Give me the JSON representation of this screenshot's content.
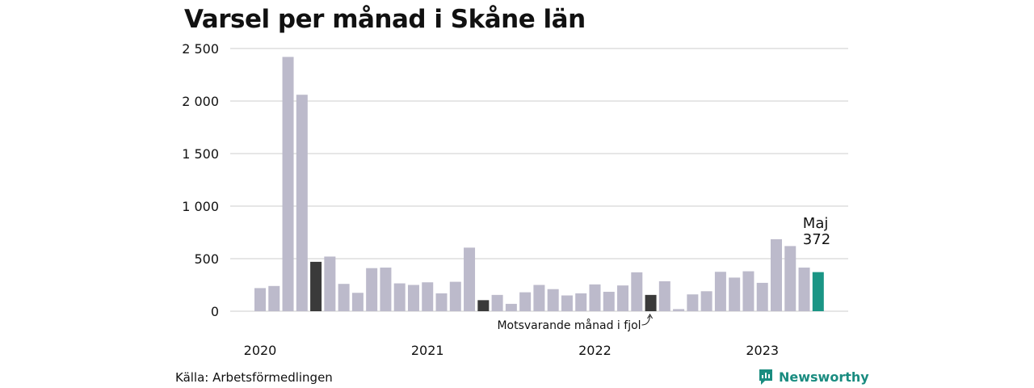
{
  "title": "Varsel per månad i Skåne län",
  "source": "Källa: Arbetsförmedlingen",
  "brand": {
    "name": "Newsworthy",
    "icon": "newsworthy-logo-icon"
  },
  "colors": {
    "bar": "#bcbacb",
    "highlight": "#3a3a3a",
    "current": "#1a9585",
    "grid": "#dddddd",
    "brand": "#1a8c80"
  },
  "chart_data": {
    "type": "bar",
    "title": "Varsel per månad i Skåne län",
    "ylim": [
      0,
      2500
    ],
    "yticks": [
      0,
      500,
      1000,
      1500,
      2000,
      2500
    ],
    "ytick_labels": [
      "0",
      "500",
      "1 000",
      "1 500",
      "2 000",
      "2 500"
    ],
    "grid": true,
    "x_year_labels": [
      {
        "label": "2020",
        "index": 0
      },
      {
        "label": "2021",
        "index": 12
      },
      {
        "label": "2022",
        "index": 24
      },
      {
        "label": "2023",
        "index": 36
      }
    ],
    "x_start": "2020-01",
    "x_end": "2023-05",
    "values": [
      220,
      240,
      2420,
      2060,
      470,
      520,
      260,
      175,
      410,
      415,
      265,
      250,
      275,
      170,
      280,
      605,
      105,
      155,
      70,
      180,
      250,
      210,
      150,
      170,
      255,
      185,
      245,
      370,
      155,
      285,
      20,
      160,
      190,
      375,
      320,
      380,
      270,
      685,
      620,
      415,
      372
    ],
    "highlight_indices": [
      4,
      16,
      28
    ],
    "current_index": 40,
    "annotations": {
      "current_label": "Maj",
      "current_value": "372",
      "previous_year_label": "Motsvarande månad i fjol"
    }
  }
}
